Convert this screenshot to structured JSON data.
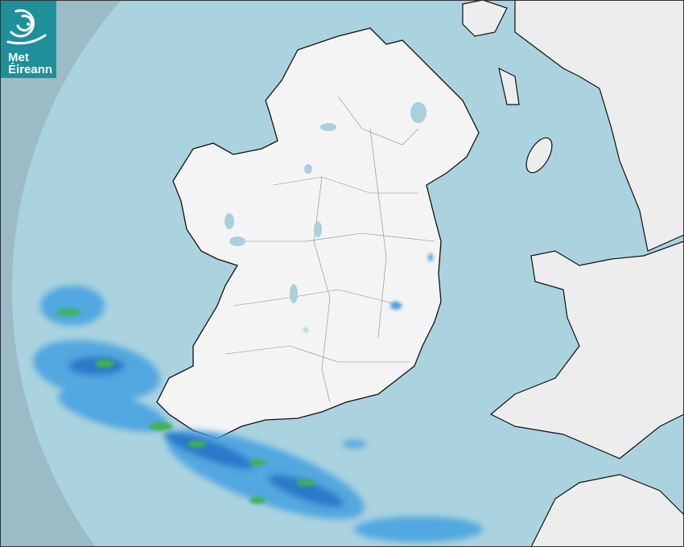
{
  "logo": {
    "line1": "Met",
    "line2": "Éireann"
  },
  "map": {
    "type": "rain radar",
    "colors": {
      "outside_coverage": "#9bbcc7",
      "sea": "#aad3df",
      "land": "#f2f2f2",
      "rain_light": "#4aa3e0",
      "rain_moderate": "#1f6fc9",
      "rain_heavy": "#3cb44b",
      "logo_background": "#1f8f9a"
    }
  }
}
